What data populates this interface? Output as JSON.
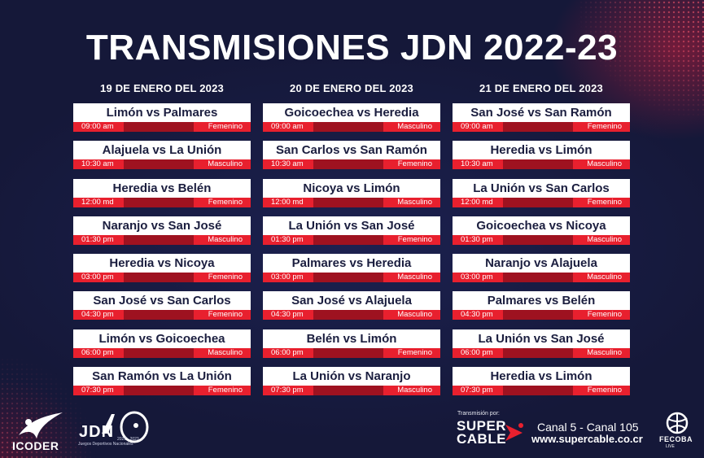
{
  "title": "TRANSMISIONES JDN 2022-23",
  "days": [
    {
      "date": "19 DE ENERO DEL 2023",
      "matches": [
        {
          "teams": "Limón vs Palmares",
          "time": "09:00 am",
          "category": "Femenino"
        },
        {
          "teams": "Alajuela vs La Unión",
          "time": "10:30 am",
          "category": "Masculino"
        },
        {
          "teams": "Heredia vs Belén",
          "time": "12:00 md",
          "category": "Femenino"
        },
        {
          "teams": "Naranjo vs San José",
          "time": "01:30 pm",
          "category": "Masculino"
        },
        {
          "teams": "Heredia vs Nicoya",
          "time": "03:00 pm",
          "category": "Femenino"
        },
        {
          "teams": "San José vs San Carlos",
          "time": "04:30 pm",
          "category": "Femenino"
        },
        {
          "teams": "Limón vs Goicoechea",
          "time": "06:00 pm",
          "category": "Masculino"
        },
        {
          "teams": "San Ramón vs La Unión",
          "time": "07:30 pm",
          "category": "Femenino"
        }
      ]
    },
    {
      "date": "20 DE ENERO DEL 2023",
      "matches": [
        {
          "teams": "Goicoechea vs Heredia",
          "time": "09:00 am",
          "category": "Masculino"
        },
        {
          "teams": "San Carlos vs San Ramón",
          "time": "10:30 am",
          "category": "Femenino"
        },
        {
          "teams": "Nicoya vs Limón",
          "time": "12:00 md",
          "category": "Masculino"
        },
        {
          "teams": "La Unión vs San José",
          "time": "01:30 pm",
          "category": "Femenino"
        },
        {
          "teams": "Palmares vs Heredia",
          "time": "03:00 pm",
          "category": "Masculino"
        },
        {
          "teams": "San José vs Alajuela",
          "time": "04:30 pm",
          "category": "Masculino"
        },
        {
          "teams": "Belén vs Limón",
          "time": "06:00 pm",
          "category": "Femenino"
        },
        {
          "teams": "La Unión vs Naranjo",
          "time": "07:30 pm",
          "category": "Masculino"
        }
      ]
    },
    {
      "date": "21 DE ENERO DEL 2023",
      "matches": [
        {
          "teams": "San José vs San Ramón",
          "time": "09:00 am",
          "category": "Femenino"
        },
        {
          "teams": "Heredia vs Limón",
          "time": "10:30 am",
          "category": "Masculino"
        },
        {
          "teams": "La Unión vs San Carlos",
          "time": "12:00 md",
          "category": "Femenino"
        },
        {
          "teams": "Goicoechea vs Nicoya",
          "time": "01:30 pm",
          "category": "Masculino"
        },
        {
          "teams": "Naranjo vs Alajuela",
          "time": "03:00 pm",
          "category": "Masculino"
        },
        {
          "teams": "Palmares vs Belén",
          "time": "04:30 pm",
          "category": "Femenino"
        },
        {
          "teams": "La Unión vs San José",
          "time": "06:00 pm",
          "category": "Masculino"
        },
        {
          "teams": "Heredia vs Limón",
          "time": "07:30 pm",
          "category": "Femenino"
        }
      ]
    }
  ],
  "footer": {
    "icoder": "ICODER",
    "jdn": "JDN",
    "jdn_subtitle": "Juegos Deportivos Nacionales",
    "jdn_years": "2022 - 2023",
    "sponsor_label": "Transmisión por:",
    "supercable_line1": "SUPER",
    "supercable_line2": "CABLE",
    "channels": "Canal 5 - Canal 105",
    "website": "www.supercable.co.cr",
    "fecoba": "FECOBA",
    "fecoba_sub": "LIVE"
  },
  "colors": {
    "background": "#161a3c",
    "accent_red": "#e8202e",
    "dark_red": "#9e1220",
    "card_white": "#ffffff",
    "card_text": "#1b1e3f"
  }
}
